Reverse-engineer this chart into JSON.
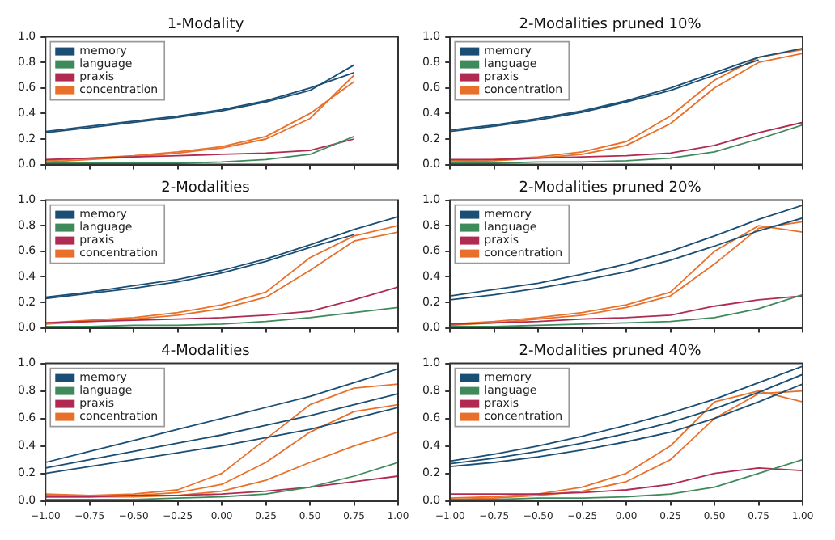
{
  "chart_data": [
    {
      "type": "line",
      "title": "1-Modality",
      "x": [
        -1,
        -0.75,
        -0.5,
        -0.25,
        0,
        0.25,
        0.5,
        0.75
      ],
      "xlim": [
        -1,
        1
      ],
      "ylim": [
        0,
        1
      ],
      "tick_labels": "y",
      "legend": "top left",
      "grid": false,
      "marker": "none",
      "xticks": [
        -1,
        -0.75,
        -0.5,
        -0.25,
        0,
        0.25,
        0.5,
        0.75,
        1
      ],
      "yticks": [
        {
          "value": 0,
          "label": "0.0"
        },
        {
          "value": 0.2,
          "label": "0.2"
        },
        {
          "value": 0.4,
          "label": "0.4"
        },
        {
          "value": 0.6,
          "label": "0.6"
        },
        {
          "value": 0.8,
          "label": "0.8"
        },
        {
          "value": 1,
          "label": "1.0"
        }
      ],
      "series": [
        {
          "name": "memory",
          "color": "#1a4e74",
          "values": [
            0.26,
            0.3,
            0.34,
            0.38,
            0.43,
            0.5,
            0.6,
            0.72
          ]
        },
        {
          "color": "#1a4e74",
          "values": [
            0.25,
            0.29,
            0.33,
            0.37,
            0.42,
            0.49,
            0.58,
            0.78
          ]
        },
        {
          "name": "language",
          "color": "#3f8a5a",
          "values": [
            0.01,
            0.01,
            0.01,
            0.01,
            0.02,
            0.04,
            0.08,
            0.22
          ]
        },
        {
          "name": "praxis",
          "color": "#b02a52",
          "values": [
            0.04,
            0.05,
            0.06,
            0.07,
            0.08,
            0.09,
            0.11,
            0.2
          ]
        },
        {
          "name": "concentration",
          "color": "#e8702a",
          "values": [
            0.03,
            0.05,
            0.07,
            0.1,
            0.14,
            0.22,
            0.4,
            0.65
          ]
        },
        {
          "color": "#e8702a",
          "values": [
            0.02,
            0.04,
            0.06,
            0.09,
            0.13,
            0.2,
            0.36,
            0.7
          ]
        }
      ]
    },
    {
      "type": "line",
      "title": "2-Modalities pruned 10%",
      "x": [
        -1,
        -0.75,
        -0.5,
        -0.25,
        0,
        0.25,
        0.5,
        0.75,
        1
      ],
      "xlim": [
        -1,
        1
      ],
      "ylim": [
        0,
        1
      ],
      "tick_labels": "y",
      "legend": "top left",
      "grid": false,
      "marker": "none",
      "xticks": [
        -1,
        -0.75,
        -0.5,
        -0.25,
        0,
        0.25,
        0.5,
        0.75,
        1
      ],
      "yticks": [
        {
          "value": 0,
          "label": "0.0"
        },
        {
          "value": 0.2,
          "label": "0.2"
        },
        {
          "value": 0.4,
          "label": "0.4"
        },
        {
          "value": 0.6,
          "label": "0.6"
        },
        {
          "value": 0.8,
          "label": "0.8"
        },
        {
          "value": 1,
          "label": "1.0"
        }
      ],
      "series": [
        {
          "name": "memory",
          "color": "#1a4e74",
          "values": [
            0.27,
            0.31,
            0.36,
            0.42,
            0.5,
            0.6,
            0.72,
            0.84,
            0.91
          ]
        },
        {
          "color": "#1a4e74",
          "values": [
            0.26,
            0.3,
            0.35,
            0.41,
            0.49,
            0.58,
            0.7,
            0.82,
            null
          ]
        },
        {
          "name": "language",
          "color": "#3f8a5a",
          "values": [
            0.01,
            0.01,
            0.02,
            0.02,
            0.03,
            0.05,
            0.1,
            0.2,
            0.31
          ]
        },
        {
          "name": "praxis",
          "color": "#b02a52",
          "values": [
            0.04,
            0.04,
            0.05,
            0.06,
            0.07,
            0.09,
            0.15,
            0.25,
            0.33
          ]
        },
        {
          "name": "concentration",
          "color": "#e8702a",
          "values": [
            0.03,
            0.04,
            0.06,
            0.1,
            0.18,
            0.38,
            0.66,
            0.84,
            0.9
          ]
        },
        {
          "color": "#e8702a",
          "values": [
            0.02,
            0.03,
            0.05,
            0.08,
            0.15,
            0.32,
            0.6,
            0.8,
            0.87
          ]
        }
      ]
    },
    {
      "type": "line",
      "title": "2-Modalities",
      "x": [
        -1,
        -0.75,
        -0.5,
        -0.25,
        0,
        0.25,
        0.5,
        0.75,
        1
      ],
      "xlim": [
        -1,
        1
      ],
      "ylim": [
        0,
        1
      ],
      "tick_labels": "y",
      "legend": "top left",
      "grid": false,
      "marker": "none",
      "xticks": [
        -1,
        -0.75,
        -0.5,
        -0.25,
        0,
        0.25,
        0.5,
        0.75,
        1
      ],
      "yticks": [
        {
          "value": 0,
          "label": "0.0"
        },
        {
          "value": 0.2,
          "label": "0.2"
        },
        {
          "value": 0.4,
          "label": "0.4"
        },
        {
          "value": 0.6,
          "label": "0.6"
        },
        {
          "value": 0.8,
          "label": "0.8"
        },
        {
          "value": 1,
          "label": "1.0"
        }
      ],
      "series": [
        {
          "name": "memory",
          "color": "#1a4e74",
          "values": [
            0.24,
            0.28,
            0.33,
            0.38,
            0.45,
            0.54,
            0.65,
            0.77,
            0.87
          ]
        },
        {
          "color": "#1a4e74",
          "values": [
            0.23,
            0.27,
            0.31,
            0.36,
            0.43,
            0.52,
            0.63,
            0.73,
            null
          ]
        },
        {
          "name": "language",
          "color": "#3f8a5a",
          "values": [
            0.01,
            0.01,
            0.02,
            0.02,
            0.03,
            0.05,
            0.08,
            0.12,
            0.16
          ]
        },
        {
          "name": "praxis",
          "color": "#b02a52",
          "values": [
            0.04,
            0.05,
            0.06,
            0.07,
            0.08,
            0.1,
            0.13,
            0.22,
            0.32
          ]
        },
        {
          "name": "concentration",
          "color": "#e8702a",
          "values": [
            0.04,
            0.06,
            0.08,
            0.12,
            0.18,
            0.28,
            0.55,
            0.72,
            0.8
          ]
        },
        {
          "color": "#e8702a",
          "values": [
            0.03,
            0.05,
            0.07,
            0.1,
            0.15,
            0.24,
            0.45,
            0.68,
            0.75
          ]
        }
      ]
    },
    {
      "type": "line",
      "title": "2-Modalities pruned 20%",
      "x": [
        -1,
        -0.75,
        -0.5,
        -0.25,
        0,
        0.25,
        0.5,
        0.75,
        1
      ],
      "xlim": [
        -1,
        1
      ],
      "ylim": [
        0,
        1
      ],
      "tick_labels": "y",
      "legend": "top left",
      "grid": false,
      "marker": "none",
      "xticks": [
        -1,
        -0.75,
        -0.5,
        -0.25,
        0,
        0.25,
        0.5,
        0.75,
        1
      ],
      "yticks": [
        {
          "value": 0,
          "label": "0.0"
        },
        {
          "value": 0.2,
          "label": "0.2"
        },
        {
          "value": 0.4,
          "label": "0.4"
        },
        {
          "value": 0.6,
          "label": "0.6"
        },
        {
          "value": 0.8,
          "label": "0.8"
        },
        {
          "value": 1,
          "label": "1.0"
        }
      ],
      "series": [
        {
          "name": "memory",
          "color": "#1a4e74",
          "values": [
            0.25,
            0.3,
            0.35,
            0.42,
            0.5,
            0.6,
            0.72,
            0.85,
            0.96
          ]
        },
        {
          "color": "#1a4e74",
          "values": [
            0.22,
            0.26,
            0.31,
            0.37,
            0.44,
            0.53,
            0.64,
            0.76,
            0.86
          ]
        },
        {
          "name": "language",
          "color": "#3f8a5a",
          "values": [
            0.01,
            0.01,
            0.02,
            0.03,
            0.04,
            0.05,
            0.08,
            0.15,
            0.26
          ]
        },
        {
          "name": "praxis",
          "color": "#b02a52",
          "values": [
            0.03,
            0.04,
            0.05,
            0.07,
            0.08,
            0.1,
            0.17,
            0.22,
            0.25
          ]
        },
        {
          "name": "concentration",
          "color": "#e8702a",
          "values": [
            0.03,
            0.05,
            0.08,
            0.12,
            0.18,
            0.28,
            0.6,
            0.8,
            0.75
          ]
        },
        {
          "color": "#e8702a",
          "values": [
            0.02,
            0.04,
            0.07,
            0.1,
            0.16,
            0.25,
            0.5,
            0.78,
            0.83
          ]
        }
      ]
    },
    {
      "type": "line",
      "title": "4-Modalities",
      "x": [
        -1,
        -0.75,
        -0.5,
        -0.25,
        0,
        0.25,
        0.5,
        0.75,
        1
      ],
      "xlim": [
        -1,
        1
      ],
      "ylim": [
        0,
        1
      ],
      "legend": "top left",
      "grid": false,
      "marker": "none",
      "xticks": [
        {
          "value": -1,
          "label": "−1.00"
        },
        {
          "value": -0.75,
          "label": "−0.75"
        },
        {
          "value": -0.5,
          "label": "−0.50"
        },
        {
          "value": -0.25,
          "label": "−0.25"
        },
        {
          "value": 0,
          "label": "0.00"
        },
        {
          "value": 0.25,
          "label": "0.25"
        },
        {
          "value": 0.5,
          "label": "0.50"
        },
        {
          "value": 0.75,
          "label": "0.75"
        },
        {
          "value": 1,
          "label": "1.00"
        }
      ],
      "yticks": [
        {
          "value": 0,
          "label": "0.0"
        },
        {
          "value": 0.2,
          "label": "0.2"
        },
        {
          "value": 0.4,
          "label": "0.4"
        },
        {
          "value": 0.6,
          "label": "0.6"
        },
        {
          "value": 0.8,
          "label": "0.8"
        },
        {
          "value": 1,
          "label": "1.0"
        }
      ],
      "series": [
        {
          "name": "memory",
          "color": "#1a4e74",
          "values": [
            0.28,
            0.36,
            0.44,
            0.52,
            0.6,
            0.68,
            0.76,
            0.86,
            0.96
          ]
        },
        {
          "color": "#1a4e74",
          "values": [
            0.24,
            0.3,
            0.36,
            0.42,
            0.48,
            0.55,
            0.62,
            0.7,
            0.78
          ]
        },
        {
          "color": "#1a4e74",
          "values": [
            0.2,
            0.25,
            0.3,
            0.35,
            0.4,
            0.46,
            0.52,
            0.6,
            0.68
          ]
        },
        {
          "name": "language",
          "color": "#3f8a5a",
          "values": [
            0.01,
            0.01,
            0.01,
            0.02,
            0.03,
            0.05,
            0.1,
            0.18,
            0.28
          ]
        },
        {
          "name": "praxis",
          "color": "#b02a52",
          "values": [
            0.03,
            0.03,
            0.04,
            0.04,
            0.05,
            0.07,
            0.1,
            0.14,
            0.18
          ]
        },
        {
          "name": "concentration",
          "color": "#e8702a",
          "values": [
            0.05,
            0.04,
            0.05,
            0.08,
            0.2,
            0.45,
            0.7,
            0.82,
            0.85
          ]
        },
        {
          "color": "#e8702a",
          "values": [
            0.04,
            0.04,
            0.04,
            0.06,
            0.12,
            0.28,
            0.5,
            0.65,
            0.7
          ]
        },
        {
          "color": "#e8702a",
          "values": [
            0.03,
            0.03,
            0.03,
            0.04,
            0.07,
            0.15,
            0.28,
            0.4,
            0.5
          ]
        }
      ]
    },
    {
      "type": "line",
      "title": "2-Modalities pruned 40%",
      "x": [
        -1,
        -0.75,
        -0.5,
        -0.25,
        0,
        0.25,
        0.5,
        0.75,
        1
      ],
      "xlim": [
        -1,
        1
      ],
      "ylim": [
        0,
        1
      ],
      "legend": "top left",
      "grid": false,
      "marker": "none",
      "xticks": [
        {
          "value": -1,
          "label": "−1.00"
        },
        {
          "value": -0.75,
          "label": "−0.75"
        },
        {
          "value": -0.5,
          "label": "−0.50"
        },
        {
          "value": -0.25,
          "label": "−0.25"
        },
        {
          "value": 0,
          "label": "0.00"
        },
        {
          "value": 0.25,
          "label": "0.25"
        },
        {
          "value": 0.5,
          "label": "0.50"
        },
        {
          "value": 0.75,
          "label": "0.75"
        },
        {
          "value": 1,
          "label": "1.00"
        }
      ],
      "yticks": [
        {
          "value": 0,
          "label": "0.0"
        },
        {
          "value": 0.2,
          "label": "0.2"
        },
        {
          "value": 0.4,
          "label": "0.4"
        },
        {
          "value": 0.6,
          "label": "0.6"
        },
        {
          "value": 0.8,
          "label": "0.8"
        },
        {
          "value": 1,
          "label": "1.0"
        }
      ],
      "series": [
        {
          "name": "memory",
          "color": "#1a4e74",
          "values": [
            0.29,
            0.34,
            0.4,
            0.47,
            0.55,
            0.64,
            0.74,
            0.86,
            0.98
          ]
        },
        {
          "color": "#1a4e74",
          "values": [
            0.27,
            0.31,
            0.36,
            0.42,
            0.49,
            0.57,
            0.67,
            0.79,
            0.92
          ]
        },
        {
          "color": "#1a4e74",
          "values": [
            0.25,
            0.28,
            0.32,
            0.37,
            0.43,
            0.5,
            0.6,
            0.72,
            0.85
          ]
        },
        {
          "name": "language",
          "color": "#3f8a5a",
          "values": [
            0.01,
            0.01,
            0.02,
            0.02,
            0.03,
            0.05,
            0.1,
            0.2,
            0.3
          ]
        },
        {
          "name": "praxis",
          "color": "#b02a52",
          "values": [
            0.05,
            0.05,
            0.05,
            0.06,
            0.08,
            0.12,
            0.2,
            0.24,
            0.22
          ]
        },
        {
          "name": "concentration",
          "color": "#e8702a",
          "values": [
            0.02,
            0.03,
            0.05,
            0.1,
            0.2,
            0.4,
            0.72,
            0.8,
            0.72
          ]
        },
        {
          "color": "#e8702a",
          "values": [
            0.01,
            0.02,
            0.04,
            0.07,
            0.14,
            0.3,
            0.6,
            0.78,
            0.8
          ]
        }
      ]
    }
  ]
}
